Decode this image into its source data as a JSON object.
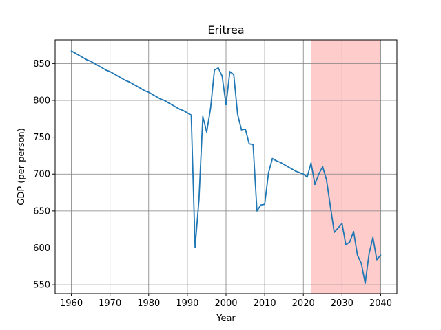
{
  "chart_data": {
    "type": "line",
    "title": "Eritrea",
    "xlabel": "Year",
    "ylabel": "GDP (per person)",
    "xlim": [
      1955.8,
      2044.2
    ],
    "ylim": [
      538,
      882
    ],
    "xticks": [
      1960,
      1970,
      1980,
      1990,
      2000,
      2010,
      2020,
      2030,
      2040
    ],
    "yticks": [
      550,
      600,
      650,
      700,
      750,
      800,
      850
    ],
    "grid": true,
    "line_color": "#1f77b4",
    "grid_color": "#808080",
    "forecast_shading": {
      "start": 2022,
      "end": 2040,
      "color": "#ffcccc"
    },
    "series": [
      {
        "x": [
          1960,
          1961,
          1962,
          1963,
          1964,
          1965,
          1966,
          1967,
          1968,
          1969,
          1970,
          1971,
          1972,
          1973,
          1974,
          1975,
          1976,
          1977,
          1978,
          1979,
          1980,
          1981,
          1982,
          1983,
          1984,
          1985,
          1986,
          1987,
          1988,
          1989,
          1990,
          1991,
          1992,
          1993,
          1994,
          1995,
          1996,
          1997,
          1998,
          1999,
          2000,
          2001,
          2002,
          2003,
          2004,
          2005,
          2006,
          2007,
          2008,
          2009,
          2010,
          2011,
          2012,
          2013,
          2014,
          2015,
          2016,
          2017,
          2018,
          2019,
          2020,
          2021,
          2022,
          2023,
          2024,
          2025,
          2026,
          2027,
          2028,
          2029,
          2030,
          2031,
          2032,
          2033,
          2034,
          2035,
          2036,
          2037,
          2038,
          2039,
          2040
        ],
        "values": [
          867,
          864,
          861,
          858,
          855,
          853,
          850,
          847,
          844,
          841,
          839,
          836,
          833,
          830,
          827,
          825,
          822,
          819,
          816,
          813,
          811,
          808,
          805,
          802,
          800,
          797,
          794,
          791,
          788,
          786,
          783,
          780,
          601,
          665,
          778,
          757,
          789,
          841,
          844,
          833,
          794,
          839,
          835,
          781,
          760,
          761,
          741,
          740,
          650,
          658,
          659,
          702,
          721,
          718,
          716,
          713,
          710,
          707,
          704,
          702,
          700,
          696,
          715,
          686,
          700,
          710,
          692,
          656,
          621,
          627,
          633,
          604,
          608,
          622,
          590,
          579,
          552,
          592,
          614,
          584,
          590
        ]
      }
    ]
  }
}
